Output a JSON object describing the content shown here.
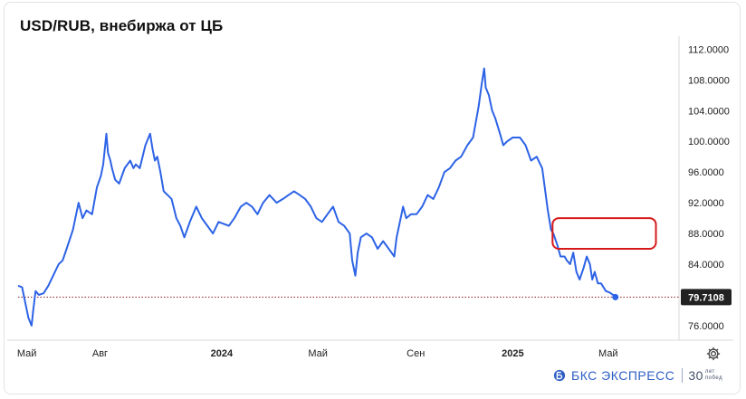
{
  "title": "USD/RUB, внебиржа от ЦБ",
  "brand": {
    "name": "БКС ЭКСПРЕСС",
    "anniversary_num": "30",
    "anniversary_text": "лет побед"
  },
  "colors": {
    "line": "#2d63e6",
    "highlight": "#d61a1a",
    "last_badge": "#222222",
    "ref_line": "#8a1c2a"
  },
  "icons": {
    "settings": "gear-icon",
    "brand": "bks-logo-icon"
  },
  "chart_data": {
    "type": "line",
    "title": "USD/RUB, внебиржа от ЦБ",
    "xlabel": "",
    "ylabel": "",
    "ylim": [
      74.1,
      113.7
    ],
    "y_ticks": [
      "112.0000",
      "108.0000",
      "104.0000",
      "100.0000",
      "96.0000",
      "92.0000",
      "88.0000",
      "84.0000",
      "80.0000",
      "76.0000"
    ],
    "x_ticks": [
      {
        "label": "Май",
        "date": "2023-05-01",
        "bold": false
      },
      {
        "label": "Авг",
        "date": "2023-08-01",
        "bold": false
      },
      {
        "label": "2024",
        "date": "2024-01-01",
        "bold": true
      },
      {
        "label": "Май",
        "date": "2024-05-01",
        "bold": false
      },
      {
        "label": "Сен",
        "date": "2024-09-01",
        "bold": false
      },
      {
        "label": "2025",
        "date": "2025-01-01",
        "bold": true
      },
      {
        "label": "Май",
        "date": "2025-05-01",
        "bold": false
      }
    ],
    "last_value": "79.7108",
    "last_date": "2025-05-10",
    "highlight_box": {
      "x_from": "2025-02-20",
      "x_to": "2025-06-30",
      "y_from": 86.0,
      "y_to": 90.0
    },
    "grid": false,
    "series": [
      {
        "name": "",
        "x": [
          "2023-04-20",
          "2023-04-25",
          "2023-04-29",
          "2023-05-03",
          "2023-05-07",
          "2023-05-09",
          "2023-05-12",
          "2023-05-16",
          "2023-05-22",
          "2023-05-28",
          "2023-06-03",
          "2023-06-10",
          "2023-06-15",
          "2023-06-20",
          "2023-06-28",
          "2023-07-05",
          "2023-07-10",
          "2023-07-15",
          "2023-07-22",
          "2023-07-28",
          "2023-08-02",
          "2023-08-05",
          "2023-08-09",
          "2023-08-11",
          "2023-08-14",
          "2023-08-16",
          "2023-08-20",
          "2023-08-25",
          "2023-09-01",
          "2023-09-08",
          "2023-09-12",
          "2023-09-15",
          "2023-09-20",
          "2023-09-27",
          "2023-10-03",
          "2023-10-06",
          "2023-10-09",
          "2023-10-12",
          "2023-10-16",
          "2023-10-20",
          "2023-10-25",
          "2023-10-30",
          "2023-11-05",
          "2023-11-10",
          "2023-11-15",
          "2023-11-22",
          "2023-11-30",
          "2023-12-07",
          "2023-12-14",
          "2023-12-21",
          "2023-12-28",
          "2024-01-10",
          "2024-01-17",
          "2024-01-25",
          "2024-02-01",
          "2024-02-08",
          "2024-02-15",
          "2024-02-22",
          "2024-03-01",
          "2024-03-10",
          "2024-03-18",
          "2024-03-25",
          "2024-04-01",
          "2024-04-08",
          "2024-04-15",
          "2024-04-22",
          "2024-04-29",
          "2024-05-06",
          "2024-05-13",
          "2024-05-20",
          "2024-05-27",
          "2024-06-03",
          "2024-06-10",
          "2024-06-13",
          "2024-06-17",
          "2024-06-20",
          "2024-06-24",
          "2024-07-01",
          "2024-07-08",
          "2024-07-15",
          "2024-07-22",
          "2024-07-29",
          "2024-08-05",
          "2024-08-08",
          "2024-08-12",
          "2024-08-16",
          "2024-08-20",
          "2024-08-26",
          "2024-09-02",
          "2024-09-09",
          "2024-09-16",
          "2024-09-23",
          "2024-09-30",
          "2024-10-07",
          "2024-10-14",
          "2024-10-21",
          "2024-10-28",
          "2024-11-05",
          "2024-11-12",
          "2024-11-19",
          "2024-11-23",
          "2024-11-26",
          "2024-11-28",
          "2024-12-02",
          "2024-12-06",
          "2024-12-10",
          "2024-12-16",
          "2024-12-20",
          "2024-12-25",
          "2025-01-01",
          "2025-01-10",
          "2025-01-17",
          "2025-01-24",
          "2025-01-31",
          "2025-02-07",
          "2025-02-14",
          "2025-02-18",
          "2025-02-21",
          "2025-02-26",
          "2025-03-02",
          "2025-03-07",
          "2025-03-10",
          "2025-03-14",
          "2025-03-18",
          "2025-03-22",
          "2025-03-26",
          "2025-03-31",
          "2025-04-04",
          "2025-04-08",
          "2025-04-11",
          "2025-04-14",
          "2025-04-18",
          "2025-04-22",
          "2025-04-28",
          "2025-05-03",
          "2025-05-07",
          "2025-05-10"
        ],
        "values": [
          81.2,
          81.0,
          79.0,
          77.0,
          76.0,
          78.0,
          80.5,
          80.0,
          80.2,
          81.2,
          82.5,
          84.0,
          84.5,
          86.0,
          88.5,
          92.0,
          90.0,
          91.0,
          90.5,
          94.0,
          95.5,
          97.0,
          101.0,
          98.5,
          97.5,
          96.5,
          95.0,
          94.5,
          96.5,
          97.5,
          96.5,
          97.0,
          96.5,
          99.5,
          101.0,
          99.0,
          97.5,
          98.0,
          96.0,
          93.5,
          93.0,
          92.5,
          90.0,
          89.0,
          87.5,
          89.5,
          91.5,
          90.0,
          89.0,
          88.0,
          89.5,
          89.0,
          90.0,
          91.5,
          92.0,
          91.5,
          90.5,
          92.0,
          93.0,
          92.0,
          92.5,
          93.0,
          93.5,
          93.0,
          92.5,
          91.5,
          90.0,
          89.5,
          90.5,
          91.5,
          89.5,
          89.0,
          88.0,
          84.5,
          82.5,
          85.5,
          87.5,
          88.0,
          87.5,
          86.0,
          87.0,
          86.0,
          85.0,
          87.5,
          89.5,
          91.5,
          90.0,
          90.5,
          90.5,
          91.5,
          93.0,
          92.5,
          94.0,
          96.0,
          96.5,
          97.5,
          98.0,
          99.5,
          100.5,
          104.5,
          107.5,
          109.5,
          107.0,
          106.0,
          104.0,
          103.0,
          101.0,
          99.5,
          100.0,
          100.5,
          100.5,
          99.5,
          97.5,
          98.0,
          96.5,
          91.0,
          88.5,
          88.0,
          86.5,
          85.0,
          85.0,
          84.5,
          84.0,
          85.5,
          83.0,
          82.0,
          83.5,
          85.0,
          84.0,
          82.0,
          83.0,
          81.5,
          81.5,
          80.5,
          80.3,
          80.0,
          79.7108
        ]
      }
    ]
  }
}
